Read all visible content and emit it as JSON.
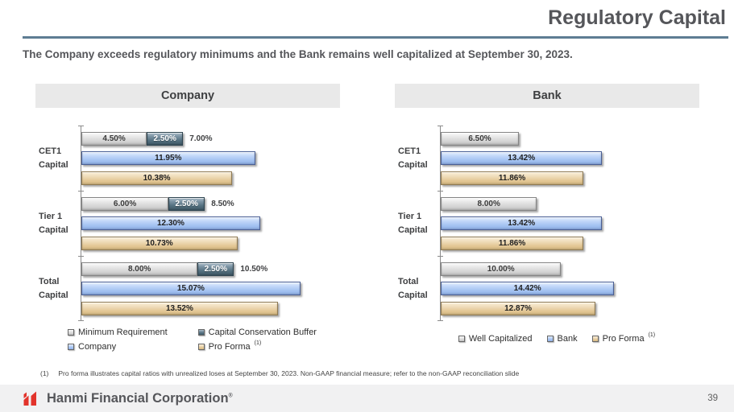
{
  "slide": {
    "title": "Regulatory Capital",
    "subtitle": "The Company exceeds regulatory minimums and the Bank remains well capitalized at September 30, 2023.",
    "page_number": "39"
  },
  "chart_data": [
    {
      "type": "bar",
      "orientation": "horizontal",
      "title": "Company",
      "categories": [
        [
          "CET1",
          "Capital"
        ],
        [
          "Tier 1",
          "Capital"
        ],
        [
          "Total",
          "Capital"
        ]
      ],
      "value_suffix": "%",
      "xlim": [
        0,
        17.8
      ],
      "grid": false,
      "legend_position": "bottom",
      "series": [
        {
          "name": "Minimum Requirement",
          "color": "gray",
          "stack": "requirement",
          "values": [
            4.5,
            6.0,
            8.0
          ]
        },
        {
          "name": "Capital Conservation Buffer",
          "color": "slate",
          "stack": "requirement",
          "values": [
            2.5,
            2.5,
            2.5
          ]
        },
        {
          "name": "Company",
          "color": "blue",
          "values": [
            11.95,
            12.3,
            15.07
          ]
        },
        {
          "name": "Pro Forma",
          "color": "tan",
          "sup": "(1)",
          "values": [
            10.38,
            10.73,
            13.52
          ]
        }
      ],
      "stack_total_labels": [
        "7.00%",
        "8.50%",
        "10.50%"
      ]
    },
    {
      "type": "bar",
      "orientation": "horizontal",
      "title": "Bank",
      "categories": [
        [
          "CET1",
          "Capital"
        ],
        [
          "Tier 1",
          "Capital"
        ],
        [
          "Total",
          "Capital"
        ]
      ],
      "value_suffix": "%",
      "xlim": [
        0,
        21.5
      ],
      "grid": false,
      "legend_position": "bottom",
      "series": [
        {
          "name": "Well Capitalized",
          "color": "gray",
          "values": [
            6.5,
            8.0,
            10.0
          ]
        },
        {
          "name": "Bank",
          "color": "blue",
          "values": [
            13.42,
            13.42,
            14.42
          ]
        },
        {
          "name": "Pro Forma",
          "color": "tan",
          "sup": "(1)",
          "values": [
            11.86,
            11.86,
            12.87
          ]
        }
      ]
    }
  ],
  "footnote": {
    "marker": "(1)",
    "text": "Pro forma illustrates capital ratios with unrealized loses at September 30, 2023. Non-GAAP financial measure; refer to the non-GAAP reconciliation slide"
  },
  "footer": {
    "brand": "Hanmi Financial Corporation",
    "registered_mark": "®"
  },
  "colors": {
    "accent_red": "#E2332B",
    "title_gray": "#55565A",
    "rule_blue": "#5E7D93",
    "bar_gray": "#D2D2D2",
    "bar_slate": "#4E6878",
    "bar_blue": "#A6C3F2",
    "bar_tan": "#E2C694"
  }
}
